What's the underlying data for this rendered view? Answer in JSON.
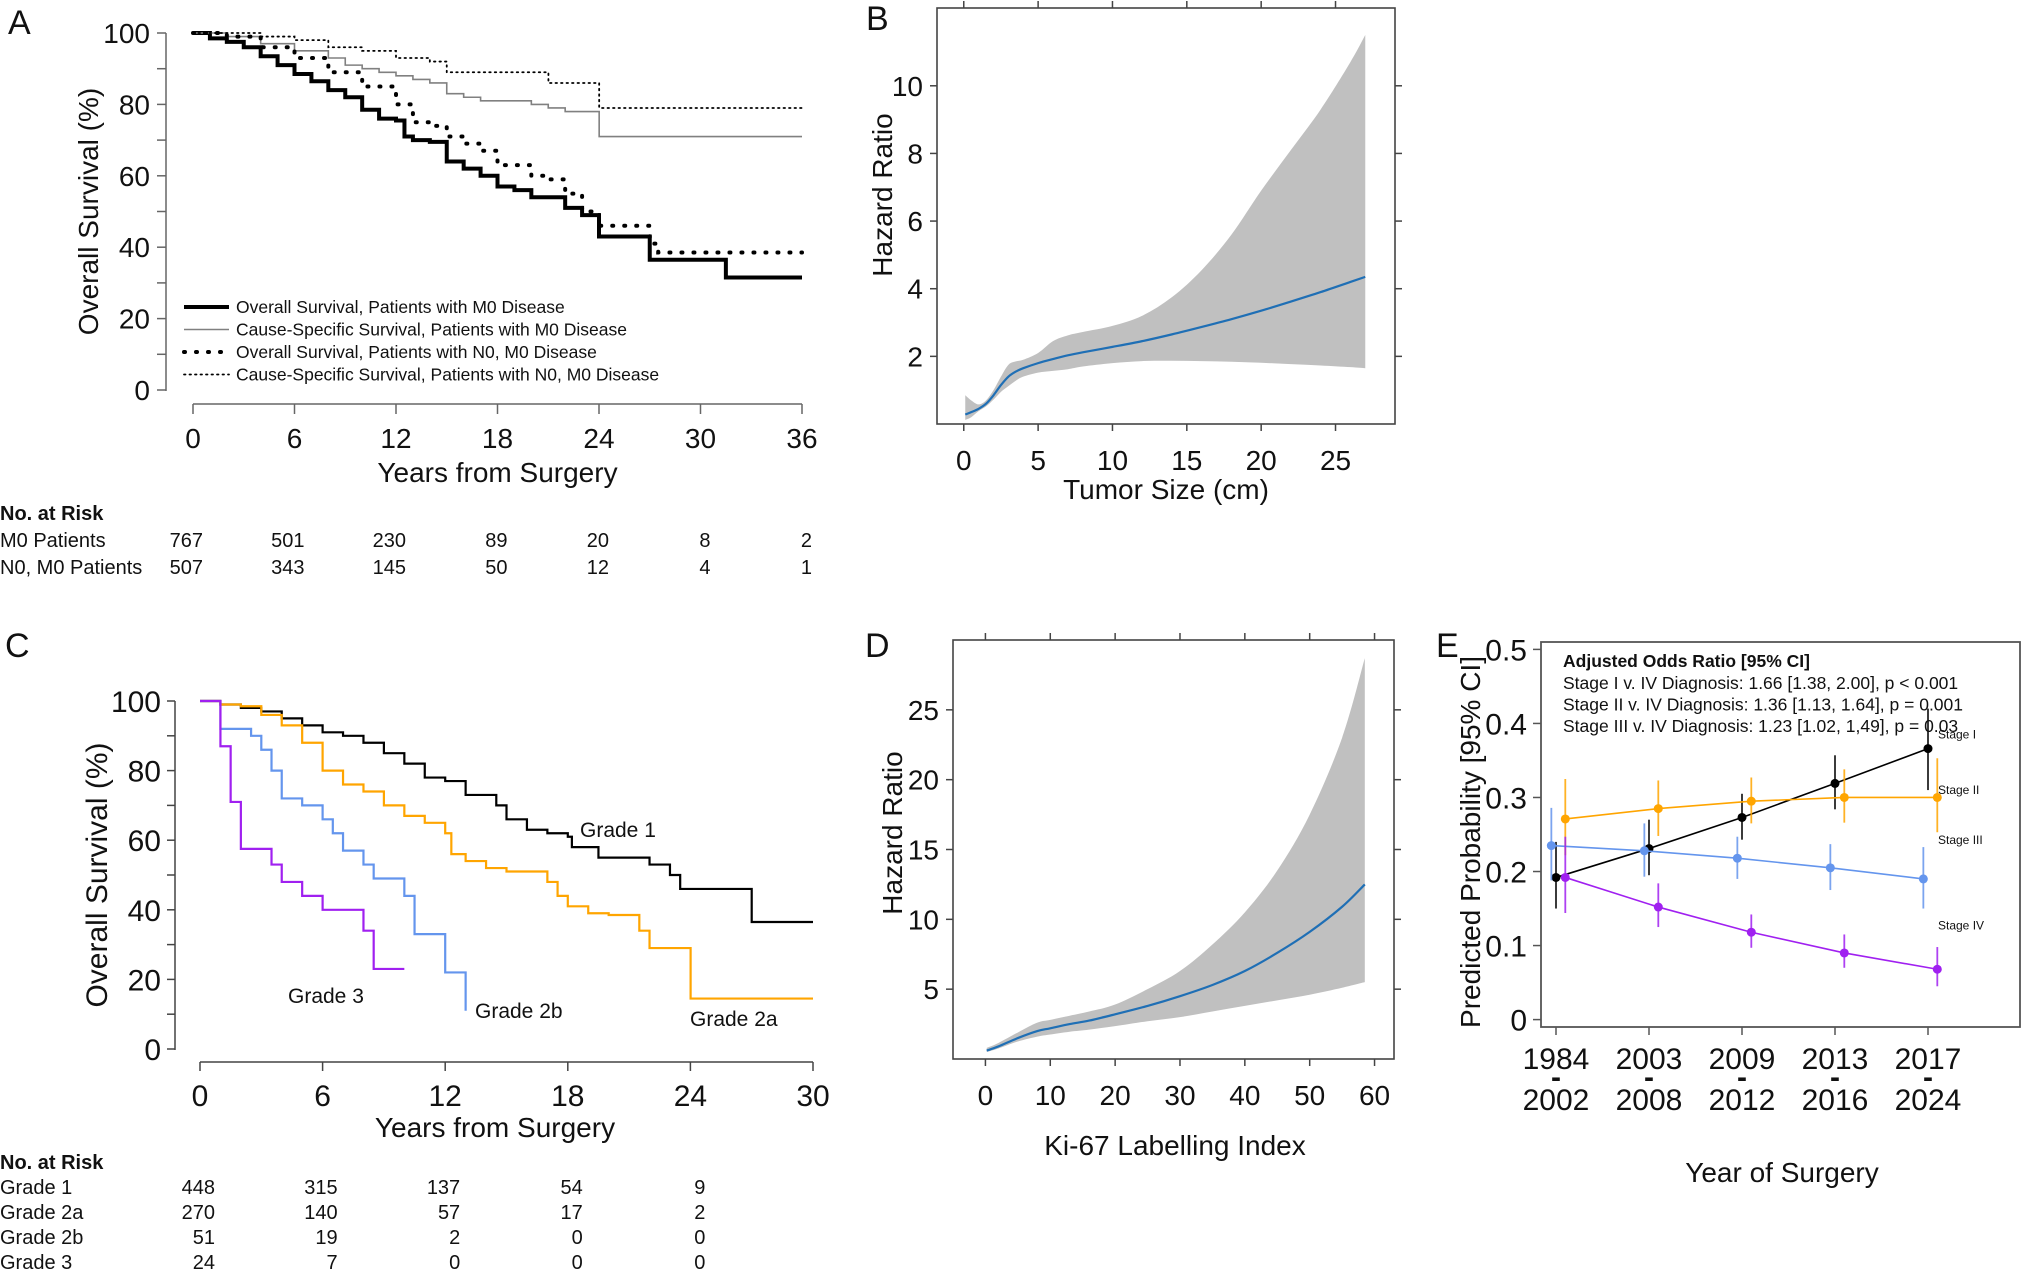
{
  "figure": {
    "panels": [
      "A",
      "B",
      "C",
      "D",
      "E"
    ]
  },
  "chart_data": [
    {
      "panel": "A",
      "type": "line",
      "subtype": "kaplan-meier-step",
      "title": "",
      "xlabel": "Years from Surgery",
      "ylabel": "Overall Survival (%)",
      "xlim": [
        0,
        36
      ],
      "ylim": [
        0,
        100
      ],
      "xticks": [
        0,
        6,
        12,
        18,
        24,
        30,
        36
      ],
      "yticks": [
        0,
        20,
        40,
        60,
        80,
        100
      ],
      "grid": false,
      "legend_position": "bottom-left",
      "series": [
        {
          "name": "Overall Survival, Patients with M0 Disease",
          "style": "thick-solid",
          "color": "#000000",
          "x": [
            0,
            1,
            2,
            3,
            4,
            5,
            6,
            7,
            8,
            9,
            10,
            11,
            12,
            12.5,
            13,
            14,
            15,
            16,
            17,
            18,
            19,
            20,
            21,
            22,
            23,
            24,
            25,
            26,
            27,
            28,
            29,
            30,
            31,
            31.5,
            36
          ],
          "y": [
            100,
            98.5,
            97.5,
            96,
            93.5,
            91,
            88.5,
            86.5,
            84,
            82,
            78.5,
            76,
            75.5,
            71,
            70,
            69.5,
            64,
            62,
            60,
            57,
            56,
            54,
            54,
            51,
            49,
            43,
            43,
            43,
            36.5,
            36.5,
            36.5,
            36.5,
            36.5,
            31.5,
            31.5
          ]
        },
        {
          "name": "Cause-Specific Survival, Patients with M0 Disease",
          "style": "thin-solid",
          "color": "#808080",
          "x": [
            0,
            2,
            4,
            6,
            8,
            9,
            10,
            11,
            12,
            13,
            14,
            15,
            16,
            17,
            18,
            20,
            21,
            22,
            24,
            24.01,
            36
          ],
          "y": [
            100,
            99,
            97,
            95,
            93,
            91,
            90,
            89,
            88,
            87,
            86,
            83,
            82,
            81,
            81,
            80,
            79,
            78,
            78,
            71,
            71
          ],
          "y_final": 71
        },
        {
          "name": "Overall Survival, Patients with N0, M0 Disease",
          "style": "thick-dotted",
          "color": "#000000",
          "x": [
            0,
            2,
            4,
            6,
            8,
            10,
            12,
            13,
            14,
            15,
            16,
            17,
            18,
            19,
            20,
            21,
            22,
            23,
            24,
            25,
            26,
            27,
            27.5,
            36
          ],
          "y": [
            100,
            99,
            96,
            93,
            89,
            85,
            80,
            75,
            74,
            71,
            69,
            67,
            63,
            63,
            60,
            59,
            55,
            50,
            46,
            46,
            46,
            41,
            38.5,
            38.5
          ]
        },
        {
          "name": "Cause-Specific Survival, Patients with N0, M0 Disease",
          "style": "thin-dotted",
          "color": "#000000",
          "x": [
            0,
            2,
            4,
            6,
            8,
            10,
            12,
            14,
            15,
            18,
            20,
            21,
            21.01,
            24,
            24.01,
            36
          ],
          "y": [
            100,
            100,
            99,
            98,
            96,
            95,
            93,
            92,
            89,
            89,
            89,
            89,
            86,
            86,
            79,
            79
          ]
        }
      ],
      "risk_table": {
        "header": "No. at Risk",
        "times": [
          0,
          6,
          12,
          18,
          24,
          30,
          36
        ],
        "rows": [
          {
            "label": "M0 Patients",
            "values": [
              767,
              501,
              230,
              89,
              20,
              8,
              2
            ]
          },
          {
            "label": "N0, M0 Patients",
            "values": [
              507,
              343,
              145,
              50,
              12,
              4,
              1
            ]
          }
        ]
      }
    },
    {
      "panel": "B",
      "type": "line",
      "subtype": "spline-with-ci-band",
      "title": "",
      "xlabel": "Tumor Size (cm)",
      "ylabel": "Hazard Ratio",
      "xlim": [
        -1.8,
        29
      ],
      "ylim": [
        0,
        12.3
      ],
      "xticks": [
        0,
        5,
        10,
        15,
        20,
        25
      ],
      "yticks": [
        2,
        4,
        6,
        8,
        10
      ],
      "grid": false,
      "line_color": "#1f6fb5",
      "band_color": "#c0c0c0",
      "x": [
        0.1,
        0.5,
        1,
        1.5,
        2,
        2.5,
        3,
        3.5,
        4,
        5,
        6,
        7,
        8,
        10,
        12,
        14,
        16,
        18,
        20,
        22,
        24,
        26,
        27
      ],
      "y": [
        0.28,
        0.35,
        0.45,
        0.6,
        0.85,
        1.15,
        1.4,
        1.55,
        1.65,
        1.8,
        1.92,
        2.03,
        2.12,
        2.28,
        2.45,
        2.65,
        2.87,
        3.1,
        3.35,
        3.62,
        3.9,
        4.2,
        4.35
      ],
      "lower": [
        0.12,
        0.2,
        0.38,
        0.52,
        0.72,
        0.95,
        1.12,
        1.28,
        1.4,
        1.52,
        1.57,
        1.62,
        1.7,
        1.8,
        1.86,
        1.87,
        1.86,
        1.84,
        1.81,
        1.77,
        1.73,
        1.68,
        1.65
      ],
      "upper": [
        0.85,
        0.7,
        0.58,
        0.7,
        1.0,
        1.4,
        1.75,
        1.85,
        1.9,
        2.1,
        2.45,
        2.62,
        2.72,
        2.9,
        3.2,
        3.75,
        4.55,
        5.6,
        6.9,
        8.1,
        9.3,
        10.7,
        11.5
      ]
    },
    {
      "panel": "C",
      "type": "line",
      "subtype": "kaplan-meier-step",
      "title": "",
      "xlabel": "Years from Surgery",
      "ylabel": "Overall Survival (%)",
      "xlim": [
        0,
        30
      ],
      "ylim": [
        0,
        100
      ],
      "xticks": [
        0,
        6,
        12,
        18,
        24,
        30
      ],
      "yticks": [
        0,
        20,
        40,
        60,
        80,
        100
      ],
      "grid": false,
      "series": [
        {
          "name": "Grade 1",
          "color": "#000000",
          "x": [
            0,
            1,
            2,
            3,
            4,
            5,
            6,
            7,
            8,
            9,
            10,
            11,
            12,
            13,
            14,
            14.5,
            15,
            16,
            17,
            18,
            18.2,
            19.5,
            21,
            22,
            23,
            23.5,
            27,
            30
          ],
          "y": [
            100,
            99,
            98,
            97,
            95,
            93,
            91,
            90,
            88,
            85,
            82,
            78,
            77,
            73,
            73,
            70,
            66,
            63,
            62,
            61,
            58,
            55,
            55,
            53,
            50,
            46,
            36.5,
            36.5
          ]
        },
        {
          "name": "Grade 2a",
          "color": "#ffa500",
          "x": [
            0,
            1,
            2,
            3,
            4,
            5,
            6,
            7,
            8,
            9,
            10,
            11,
            12,
            12.3,
            13,
            14,
            15,
            16,
            17,
            17.5,
            18,
            19,
            20,
            21,
            21.5,
            22,
            24,
            24.01,
            30
          ],
          "y": [
            100,
            99,
            98.5,
            96,
            93,
            88,
            80,
            76,
            74,
            70,
            67,
            65,
            62,
            56,
            54,
            52,
            51,
            51,
            48,
            44,
            41,
            39,
            38.5,
            38.5,
            34,
            29,
            29,
            14.5,
            14.5
          ]
        },
        {
          "name": "Grade 2b",
          "color": "#6495ed",
          "x": [
            0,
            0.5,
            1,
            2,
            2.5,
            3,
            3.5,
            4,
            5,
            6,
            6.5,
            7,
            8,
            8.5,
            10,
            10.5,
            11.5,
            12,
            13
          ],
          "y": [
            100,
            100,
            92,
            92,
            90,
            86,
            80,
            72,
            70,
            66,
            62,
            57,
            53,
            49,
            44,
            33,
            33,
            22,
            11
          ]
        },
        {
          "name": "Grade 3",
          "color": "#a020f0",
          "x": [
            0,
            0.5,
            1,
            1.5,
            2,
            3,
            3.5,
            4,
            5,
            6,
            7,
            8,
            8.5,
            10
          ],
          "y": [
            100,
            100,
            87,
            71,
            57.5,
            57.5,
            53,
            48,
            44,
            40,
            40,
            34,
            23,
            23
          ]
        }
      ],
      "curve_labels": [
        "Grade 1",
        "Grade 2a",
        "Grade 2b",
        "Grade 3"
      ],
      "risk_table": {
        "header": "No. at Risk",
        "times": [
          0,
          6,
          12,
          18,
          24
        ],
        "rows": [
          {
            "label": "Grade 1",
            "values": [
              448,
              315,
              137,
              54,
              9
            ]
          },
          {
            "label": "Grade 2a",
            "values": [
              270,
              140,
              57,
              17,
              2
            ]
          },
          {
            "label": "Grade 2b",
            "values": [
              51,
              19,
              2,
              0,
              0
            ]
          },
          {
            "label": "Grade 3",
            "values": [
              24,
              7,
              0,
              0,
              0
            ]
          }
        ]
      }
    },
    {
      "panel": "D",
      "type": "line",
      "subtype": "spline-with-ci-band",
      "title": "",
      "xlabel": "Ki-67 Labelling Index",
      "ylabel": "Hazard Ratio",
      "xlim": [
        -5,
        63
      ],
      "ylim": [
        0,
        30
      ],
      "xticks": [
        0,
        10,
        20,
        30,
        40,
        50,
        60
      ],
      "yticks": [
        5,
        10,
        15,
        20,
        25
      ],
      "grid": false,
      "line_color": "#1f6fb5",
      "band_color": "#c0c0c0",
      "x": [
        0.2,
        2,
        5,
        8,
        10,
        13,
        16,
        20,
        25,
        30,
        35,
        40,
        45,
        50,
        55,
        58.5
      ],
      "y": [
        0.6,
        0.9,
        1.5,
        2.0,
        2.2,
        2.5,
        2.75,
        3.2,
        3.8,
        4.5,
        5.3,
        6.3,
        7.6,
        9.1,
        10.9,
        12.5
      ],
      "lower": [
        0.5,
        0.75,
        1.25,
        1.6,
        1.75,
        1.95,
        2.1,
        2.35,
        2.7,
        3.0,
        3.4,
        3.8,
        4.2,
        4.6,
        5.1,
        5.5
      ],
      "upper": [
        0.8,
        1.15,
        1.9,
        2.6,
        2.8,
        3.1,
        3.4,
        3.9,
        5.0,
        6.3,
        8.2,
        10.5,
        13.5,
        17.5,
        23.0,
        28.7
      ]
    },
    {
      "panel": "E",
      "type": "line",
      "subtype": "points-with-error-bars",
      "title": "",
      "xlabel": "Year of Surgery",
      "ylabel": "Predicted Probability [95% CI]",
      "categories": [
        "1984 - 2002",
        "2003 - 2008",
        "2009 - 2012",
        "2013 - 2016",
        "2017 - 2024"
      ],
      "category_lines": [
        [
          "1984",
          "-",
          "2002"
        ],
        [
          "2003",
          "-",
          "2008"
        ],
        [
          "2009",
          "-",
          "2012"
        ],
        [
          "2013",
          "-",
          "2016"
        ],
        [
          "2017",
          "-",
          "2024"
        ]
      ],
      "ylim": [
        -0.01,
        0.51
      ],
      "yticks": [
        0,
        0.1,
        0.2,
        0.3,
        0.4,
        0.5
      ],
      "ytick_labels": [
        "0",
        "0.1",
        "0.2",
        "0.3",
        "0.4",
        "0.5"
      ],
      "grid": false,
      "series": [
        {
          "name": "Stage I",
          "color": "#000000",
          "offset": 0,
          "values": [
            0.192,
            0.231,
            0.273,
            0.319,
            0.366
          ],
          "lower": [
            0.15,
            0.195,
            0.243,
            0.284,
            0.31
          ],
          "upper": [
            0.24,
            0.27,
            0.305,
            0.357,
            0.42
          ]
        },
        {
          "name": "Stage II",
          "color": "#ffa500",
          "offset": 0.1,
          "values": [
            0.271,
            0.285,
            0.295,
            0.3,
            0.3
          ],
          "lower": [
            0.222,
            0.248,
            0.265,
            0.266,
            0.253
          ],
          "upper": [
            0.325,
            0.323,
            0.327,
            0.338,
            0.353
          ]
        },
        {
          "name": "Stage III",
          "color": "#6495ed",
          "offset": -0.05,
          "values": [
            0.235,
            0.228,
            0.218,
            0.205,
            0.19
          ],
          "lower": [
            0.188,
            0.193,
            0.19,
            0.175,
            0.15
          ],
          "upper": [
            0.286,
            0.265,
            0.247,
            0.237,
            0.233
          ]
        },
        {
          "name": "Stage IV",
          "color": "#a020f0",
          "offset": 0.1,
          "values": [
            0.192,
            0.152,
            0.118,
            0.09,
            0.068
          ],
          "lower": [
            0.144,
            0.125,
            0.097,
            0.07,
            0.045
          ],
          "upper": [
            0.247,
            0.184,
            0.142,
            0.115,
            0.098
          ]
        }
      ],
      "annotation": {
        "header": "Adjusted Odds Ratio [95% CI]",
        "lines": [
          "Stage I v. IV Diagnosis: 1.66 [1.38, 2.00], p < 0.001",
          "Stage II v. IV Diagnosis: 1.36 [1.13, 1.64], p = 0.001",
          "Stage III v. IV Diagnosis: 1.23 [1.02, 1,49], p = 0.03"
        ]
      }
    }
  ]
}
